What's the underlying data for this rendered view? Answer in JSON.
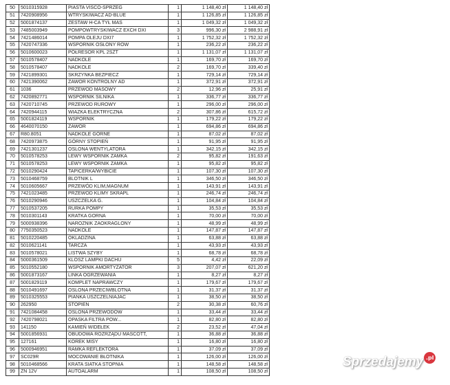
{
  "rows": [
    [
      "50",
      "5010315928",
      "PIASTA VISCO-SPRZEG",
      "1",
      "1 148,40 zł",
      "1 148,40 zł"
    ],
    [
      "51",
      "7420908956",
      "WTRYSKIWACZ AD-BLUE",
      "1",
      "1 126,85 zł",
      "1 126,85 zł"
    ],
    [
      "52",
      "5001874137",
      "ZESTAW H-CA TYŁ MAS",
      "1",
      "1 049,32 zł",
      "1 049,32 zł"
    ],
    [
      "53",
      "7485003949",
      "POMPOWTRYSKIWACZ EXCH DXI",
      "3",
      "996,30 zł",
      "2 988,91 zł"
    ],
    [
      "54",
      "7421486014",
      "POMPA OLEJU DXI7",
      "1",
      "1 752,32 zł",
      "1 752,32 zł"
    ],
    [
      "55",
      "7420747336",
      "WSPORNIK OSŁONY ROW",
      "1",
      "236,22 zł",
      "236,22 zł"
    ],
    [
      "56",
      "5010600023",
      "PÓŁRESOR KPL 2SZT",
      "1",
      "1 131,07 zł",
      "1 131,07 zł"
    ],
    [
      "57",
      "5010578407",
      "NADKOLE",
      "1",
      "169,70 zł",
      "169,70 zł"
    ],
    [
      "58",
      "5010578407",
      "NADKOLE",
      "2",
      "169,70 zł",
      "339,40 zł"
    ],
    [
      "59",
      "7421899301",
      "SKRZYNKA BEZPIECZ",
      "1",
      "729,14 zł",
      "729,14 zł"
    ],
    [
      "60",
      "7421390062",
      "ZAWOR KONTROLNY AD",
      "1",
      "372,91 zł",
      "372,91 zł"
    ],
    [
      "61",
      "1036",
      "PRZEWOD MASOWY",
      "2",
      "12,96 zł",
      "25,91 zł"
    ],
    [
      "62",
      "7420892771",
      "WSPORNIK SILNIKA",
      "1",
      "336,77 zł",
      "336,77 zł"
    ],
    [
      "63",
      "7420710745",
      "PRZEWOD RUROWY",
      "1",
      "296,00 zł",
      "296,00 zł"
    ],
    [
      "64",
      "7420944115",
      "WIAZKA ELEKTRYCZNA",
      "2",
      "307,86 zł",
      "615,72 zł"
    ],
    [
      "65",
      "5001824119",
      "WSPORNIK",
      "1",
      "179,22 zł",
      "179,22 zł"
    ],
    [
      "66",
      "4640070150",
      "ZAWÓR",
      "1",
      "694,86 zł",
      "694,86 zł"
    ],
    [
      "67",
      "R80.8051",
      "NADKOLE GÓRNE",
      "1",
      "87,02 zł",
      "87,02 zł"
    ],
    [
      "68",
      "7420973875",
      "GÓRNY STOPIEŃ",
      "1",
      "91,95 zł",
      "91,95 zł"
    ],
    [
      "69",
      "7421301237",
      "OSLONA  WENTYLATORA",
      "1",
      "342,15 zł",
      "342,15 zł"
    ],
    [
      "70",
      "5010578253",
      "LEWY WSPORNIK ZAMKA",
      "2",
      "95,82 zł",
      "191,63 zł"
    ],
    [
      "71",
      "5010578253",
      "LEWY WSPORNIK ZAMKA",
      "1",
      "95,82 zł",
      "95,82 zł"
    ],
    [
      "72",
      "5010290424",
      "TAPICERKA/WYBICIE",
      "1",
      "107,30 zł",
      "107,30 zł"
    ],
    [
      "73",
      "5010468759",
      "BLOTNIK L",
      "1",
      "346,50 zł",
      "346,50 zł"
    ],
    [
      "74",
      "5010605667",
      "PRZEWÓD KLIM,MAGNUM",
      "1",
      "143,91 zł",
      "143,91 zł"
    ],
    [
      "75",
      "7421023485",
      "PRZEWOD KLIMY SKRAPL",
      "1",
      "246,74 zł",
      "246,74 zł"
    ],
    [
      "76",
      "5010290946",
      "USZCZELKA G.",
      "1",
      "104,84 zł",
      "104,84 zł"
    ],
    [
      "77",
      "5010537205",
      "RURKA POMPY",
      "1",
      "35,53 zł",
      "35,53 zł"
    ],
    [
      "78",
      "5010301143",
      "KRATKA GORNA",
      "1",
      "70,00 zł",
      "70,00 zł"
    ],
    [
      "79",
      "5000938396",
      "NAROZNIK ZAOKRAGLONY",
      "1",
      "48,99 zł",
      "48,99 zł"
    ],
    [
      "80",
      "7750350523",
      "NADKOLE",
      "1",
      "147,87 zł",
      "147,87 zł"
    ],
    [
      "81",
      "5010220485",
      "OKLADZINA",
      "1",
      "63,88 zł",
      "63,88 zł"
    ],
    [
      "82",
      "5010621141",
      "TARCZA",
      "1",
      "43,93 zł",
      "43,93 zł"
    ],
    [
      "83",
      "5010578021",
      "LISTWA SZYBY",
      "1",
      "68,78 zł",
      "68,78 zł"
    ],
    [
      "84",
      "5000361509",
      "KLOSZ LAMPKI  DACHU",
      "5",
      "4,42 zł",
      "22,09 zł"
    ],
    [
      "85",
      "5010552180",
      "WSPORNIK AMORTYZATOR",
      "3",
      "207,07 zł",
      "621,20 zł"
    ],
    [
      "86",
      "5001873167",
      "LINKA OGRZEWANIA",
      "1",
      "8,27 zł",
      "8,27 zł"
    ],
    [
      "87",
      "5001829119",
      "KOMPLET NAPRAWCZY",
      "1",
      "179,67 zł",
      "179,67 zł"
    ],
    [
      "88",
      "5010491697",
      "OSLONA PRZECIWBLOTNA",
      "1",
      "31,37 zł",
      "31,37 zł"
    ],
    [
      "89",
      "5010325553",
      "PIANKA USZCZELNIAJAC",
      "1",
      "38,50 zł",
      "38,50 zł"
    ],
    [
      "90",
      "262950",
      "STOPIEN",
      "2",
      "30,38 zł",
      "60,76 zł"
    ],
    [
      "91",
      "7421084458",
      "OSLONA PRZEWODÓW",
      "1",
      "33,44 zł",
      "33,44 zł"
    ],
    [
      "92",
      "7420798021",
      "OPASKA FILTRA POW...",
      "1",
      "82,80 zł",
      "82,80 zł"
    ],
    [
      "93",
      "141150",
      "KAMIEŃ WIDEŁEK",
      "2",
      "23,52 zł",
      "47,04 zł"
    ],
    [
      "94",
      "5001856931",
      "OBUDOWA ROZRZĄDU MASCOTT,",
      "1",
      "36,88 zł",
      "36,88 zł"
    ],
    [
      "95",
      "127161",
      "KOREK MISY",
      "1",
      "16,80 zł",
      "16,80 zł"
    ],
    [
      "96",
      "5000946951",
      "RAMKA REFLEKTORA",
      "1",
      "37,09 zł",
      "37,09 zł"
    ],
    [
      "97",
      "SC029R",
      "MOCOWANIE BŁOTNIKA",
      "1",
      "126,00 zł",
      "126,00 zł"
    ],
    [
      "98",
      "5010468566",
      "KRATA SIATKA STOPNIA",
      "1",
      "148,58 zł",
      "148,58 zł"
    ],
    [
      "99",
      "ZN 12V",
      "AUTOALARM",
      "1",
      "108,50 zł",
      "108,50 zł"
    ]
  ],
  "watermark": {
    "text": "Sprzedajemy",
    "suffix": ".pl",
    "badge_color": "#d9363e"
  }
}
